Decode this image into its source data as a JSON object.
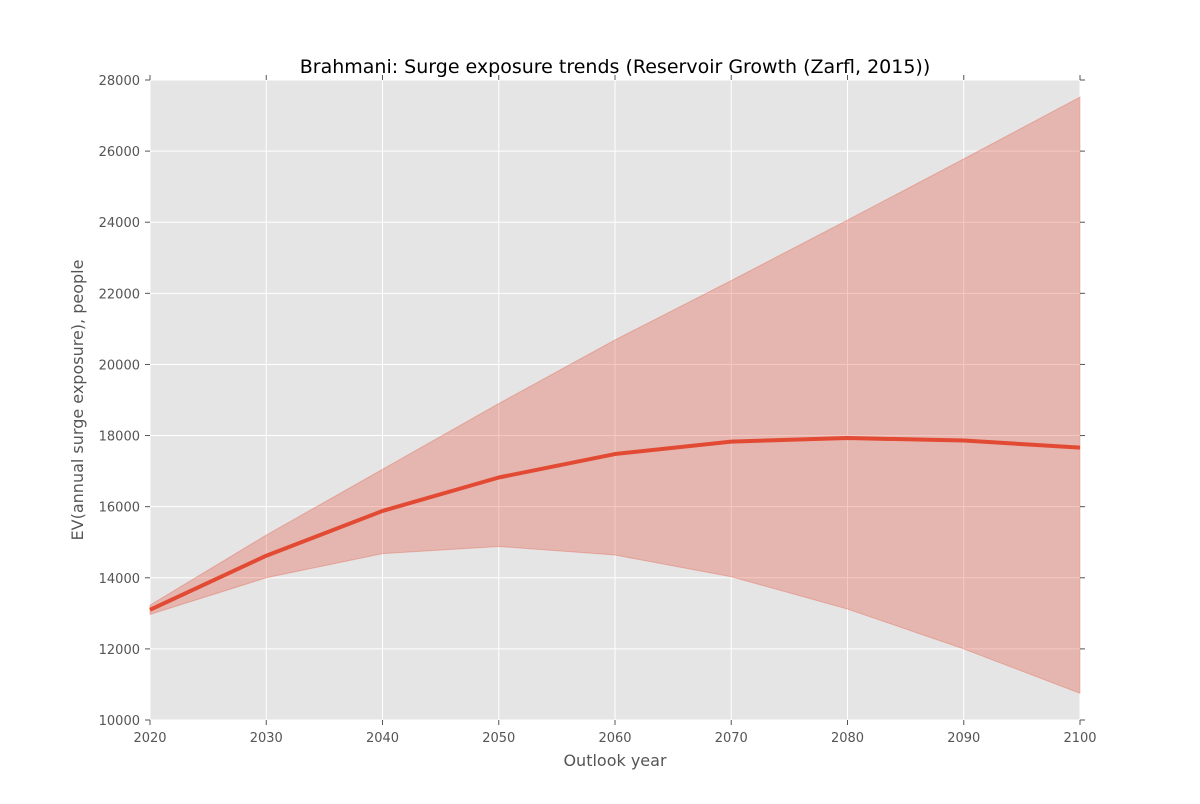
{
  "chart_data": {
    "type": "area",
    "title": "Brahmani: Surge exposure trends (Reservoir Growth (Zarfl, 2015))",
    "xlabel": "Outlook year",
    "ylabel": "EV(annual surge exposure), people",
    "xlim": [
      2020,
      2100
    ],
    "ylim": [
      10000,
      28000
    ],
    "x_ticks": [
      2020,
      2030,
      2040,
      2050,
      2060,
      2070,
      2080,
      2090,
      2100
    ],
    "y_ticks": [
      10000,
      12000,
      14000,
      16000,
      18000,
      20000,
      22000,
      24000,
      26000,
      28000
    ],
    "grid": true,
    "series": [
      {
        "x": [
          2020,
          2030,
          2040,
          2050,
          2060,
          2070,
          2080,
          2090,
          2100
        ],
        "values": [
          13100,
          14620,
          15880,
          16820,
          17480,
          17830,
          17930,
          17860,
          17660
        ],
        "lower": [
          12970,
          14000,
          14680,
          14880,
          14640,
          14030,
          13120,
          12000,
          10750
        ],
        "upper": [
          13230,
          15200,
          17050,
          18900,
          20690,
          22360,
          24060,
          25780,
          27520
        ]
      }
    ],
    "colors": {
      "line": "#E24A33",
      "band": "#E24A33",
      "axes_background": "#E5E5E5",
      "grid": "#FFFFFF",
      "text": "#555555",
      "title": "#000000"
    }
  }
}
